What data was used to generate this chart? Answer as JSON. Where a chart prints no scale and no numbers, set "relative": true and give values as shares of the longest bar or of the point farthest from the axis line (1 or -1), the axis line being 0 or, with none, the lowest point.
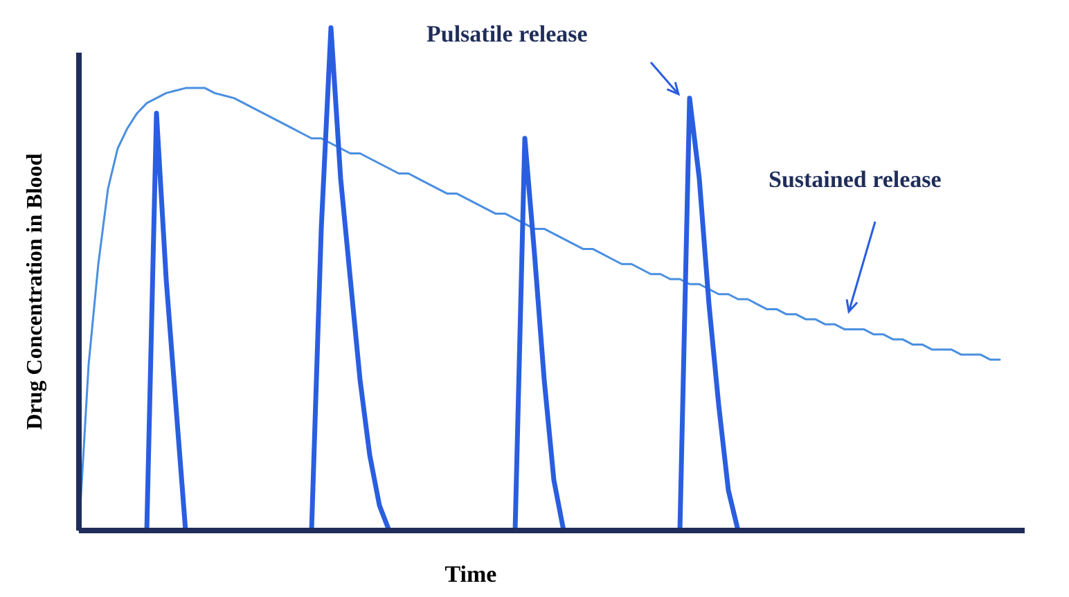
{
  "chart_data": {
    "type": "line",
    "relative": true,
    "xlabel": "Time",
    "ylabel": "Drug Concentration in Blood",
    "categories": [
      null,
      null,
      null,
      null,
      null,
      null,
      null,
      null,
      null,
      null,
      null,
      null,
      null,
      null,
      null,
      null,
      null,
      null,
      null,
      null,
      null,
      null,
      null,
      null,
      null,
      null,
      null,
      null,
      null,
      null,
      null,
      null,
      null,
      null,
      null,
      null,
      null,
      null,
      null,
      null,
      null,
      null,
      null,
      null,
      null,
      null,
      null,
      null,
      null,
      null,
      null,
      null,
      null,
      null,
      null,
      null,
      null,
      null,
      null,
      null,
      null,
      null,
      null,
      null,
      null,
      null,
      null,
      null,
      null,
      null,
      null,
      null,
      null,
      null,
      null,
      null,
      null,
      null,
      null,
      null,
      null,
      null,
      null,
      null,
      null,
      null,
      null,
      null,
      null,
      null,
      null,
      null,
      null,
      null,
      null,
      null,
      null,
      null
    ],
    "series": [
      {
        "color": "#4a8fe0",
        "values": [
          0,
          0.33,
          0.53,
          0.68,
          0.76,
          0.8,
          0.83,
          0.85,
          0.86,
          0.87,
          0.875,
          0.88,
          0.88,
          0.88,
          0.87,
          0.865,
          0.86,
          0.85,
          0.84,
          0.83,
          0.82,
          0.81,
          0.8,
          0.79,
          0.78,
          0.78,
          0.77,
          0.76,
          0.75,
          0.75,
          0.74,
          0.73,
          0.72,
          0.71,
          0.71,
          0.7,
          0.69,
          0.68,
          0.67,
          0.67,
          0.66,
          0.65,
          0.64,
          0.63,
          0.63,
          0.62,
          0.61,
          0.6,
          0.6,
          0.59,
          0.58,
          0.57,
          0.56,
          0.56,
          0.55,
          0.54,
          0.53,
          0.53,
          0.52,
          0.51,
          0.51,
          0.5,
          0.5,
          0.49,
          0.49,
          0.48,
          0.47,
          0.47,
          0.46,
          0.46,
          0.45,
          0.44,
          0.44,
          0.43,
          0.43,
          0.42,
          0.42,
          0.41,
          0.41,
          0.4,
          0.4,
          0.4,
          0.39,
          0.39,
          0.38,
          0.38,
          0.37,
          0.37,
          0.36,
          0.36,
          0.36,
          0.35,
          0.35,
          0.35,
          0.34,
          0.34,
          null,
          null
        ]
      },
      {
        "color": "#2a5ee0",
        "values": [
          null,
          null,
          null,
          null,
          null,
          null,
          null,
          0,
          0.83,
          0.5,
          0.25,
          0,
          null,
          null,
          null,
          null,
          null,
          null,
          null,
          null,
          null,
          null,
          null,
          null,
          null,
          null,
          null,
          null,
          null,
          null,
          null,
          null,
          null,
          null,
          null,
          null,
          null,
          null,
          null,
          null,
          null,
          null,
          null,
          null,
          null,
          null,
          null,
          null,
          null,
          null,
          null,
          null,
          null,
          null,
          null,
          null,
          null,
          null,
          null,
          null,
          null,
          null,
          null,
          null,
          null,
          null,
          null,
          null,
          null,
          null,
          null,
          null,
          null,
          null,
          null,
          null,
          null,
          null,
          null,
          null,
          null,
          null,
          null,
          null,
          null,
          null,
          null,
          null,
          null,
          null,
          null,
          null,
          null,
          null,
          null,
          null,
          null,
          null
        ]
      },
      {
        "color": "#2a5ee0",
        "values": [
          null,
          null,
          null,
          null,
          null,
          null,
          null,
          null,
          null,
          null,
          null,
          null,
          null,
          null,
          null,
          null,
          null,
          null,
          null,
          null,
          null,
          null,
          null,
          null,
          0,
          0.6,
          1,
          0.7,
          0.5,
          0.3,
          0.15,
          0.05,
          0,
          null,
          null,
          null,
          null,
          null,
          null,
          null,
          null,
          null,
          null,
          null,
          null,
          null,
          null,
          null,
          null,
          null,
          null,
          null,
          null,
          null,
          null,
          null,
          null,
          null,
          null,
          null,
          null,
          null,
          null,
          null,
          null,
          null,
          null,
          null,
          null,
          null,
          null,
          null,
          null,
          null,
          null,
          null,
          null,
          null,
          null,
          null,
          null,
          null,
          null,
          null,
          null,
          null,
          null,
          null,
          null,
          null,
          null,
          null,
          null,
          null,
          null,
          null,
          null,
          null
        ]
      },
      {
        "color": "#2a5ee0",
        "values": [
          null,
          null,
          null,
          null,
          null,
          null,
          null,
          null,
          null,
          null,
          null,
          null,
          null,
          null,
          null,
          null,
          null,
          null,
          null,
          null,
          null,
          null,
          null,
          null,
          null,
          null,
          null,
          null,
          null,
          null,
          null,
          null,
          null,
          null,
          null,
          null,
          null,
          null,
          null,
          null,
          null,
          null,
          null,
          null,
          null,
          0,
          0.78,
          0.55,
          0.3,
          0.1,
          0,
          null,
          null,
          null,
          null,
          null,
          null,
          null,
          null,
          null,
          null,
          null,
          null,
          null,
          null,
          null,
          null,
          null,
          null,
          null,
          null,
          null,
          null,
          null,
          null,
          null,
          null,
          null,
          null,
          null,
          null,
          null,
          null,
          null,
          null,
          null,
          null,
          null,
          null,
          null,
          null,
          null,
          null,
          null,
          null,
          null,
          null,
          null
        ]
      },
      {
        "color": "#2a5ee0",
        "values": [
          null,
          null,
          null,
          null,
          null,
          null,
          null,
          null,
          null,
          null,
          null,
          null,
          null,
          null,
          null,
          null,
          null,
          null,
          null,
          null,
          null,
          null,
          null,
          null,
          null,
          null,
          null,
          null,
          null,
          null,
          null,
          null,
          null,
          null,
          null,
          null,
          null,
          null,
          null,
          null,
          null,
          null,
          null,
          null,
          null,
          null,
          null,
          null,
          null,
          null,
          null,
          null,
          null,
          null,
          null,
          null,
          null,
          null,
          null,
          null,
          null,
          null,
          0,
          0.86,
          0.7,
          0.45,
          0.25,
          0.08,
          0,
          null,
          null,
          null,
          null,
          null,
          null,
          null,
          null,
          null,
          null,
          null,
          null,
          null,
          null,
          null,
          null,
          null,
          null,
          null,
          null,
          null,
          null,
          null,
          null,
          null,
          null,
          null,
          null,
          null
        ]
      }
    ],
    "annotations": [
      "Pulsatile release",
      "Sustained release"
    ]
  }
}
